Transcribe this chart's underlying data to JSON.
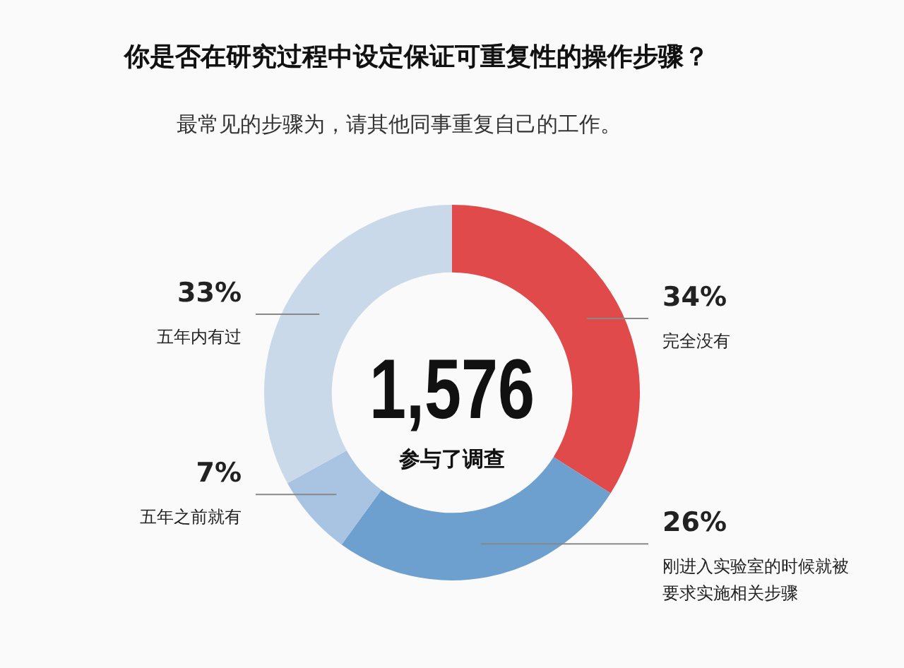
{
  "chart_data": {
    "type": "donut",
    "title": "你是否在研究过程中设定保证可重复性的操作步骤？",
    "subtitle": "最常见的步骤为，请其他同事重复自己的工作。",
    "categories": [
      "完全没有",
      "刚进入实验室的时候就被要求实施相关步骤",
      "五年之前就有",
      "五年内有过"
    ],
    "values": [
      34,
      26,
      7,
      33
    ],
    "colors": [
      "#e04a4a",
      "#6d9fcf",
      "#a8c4e2",
      "#c9d9ea"
    ],
    "value_labels": [
      "34%",
      "26%",
      "7%",
      "33%"
    ],
    "annotations": [
      "1,576",
      "参与了调查"
    ],
    "legend": false
  }
}
